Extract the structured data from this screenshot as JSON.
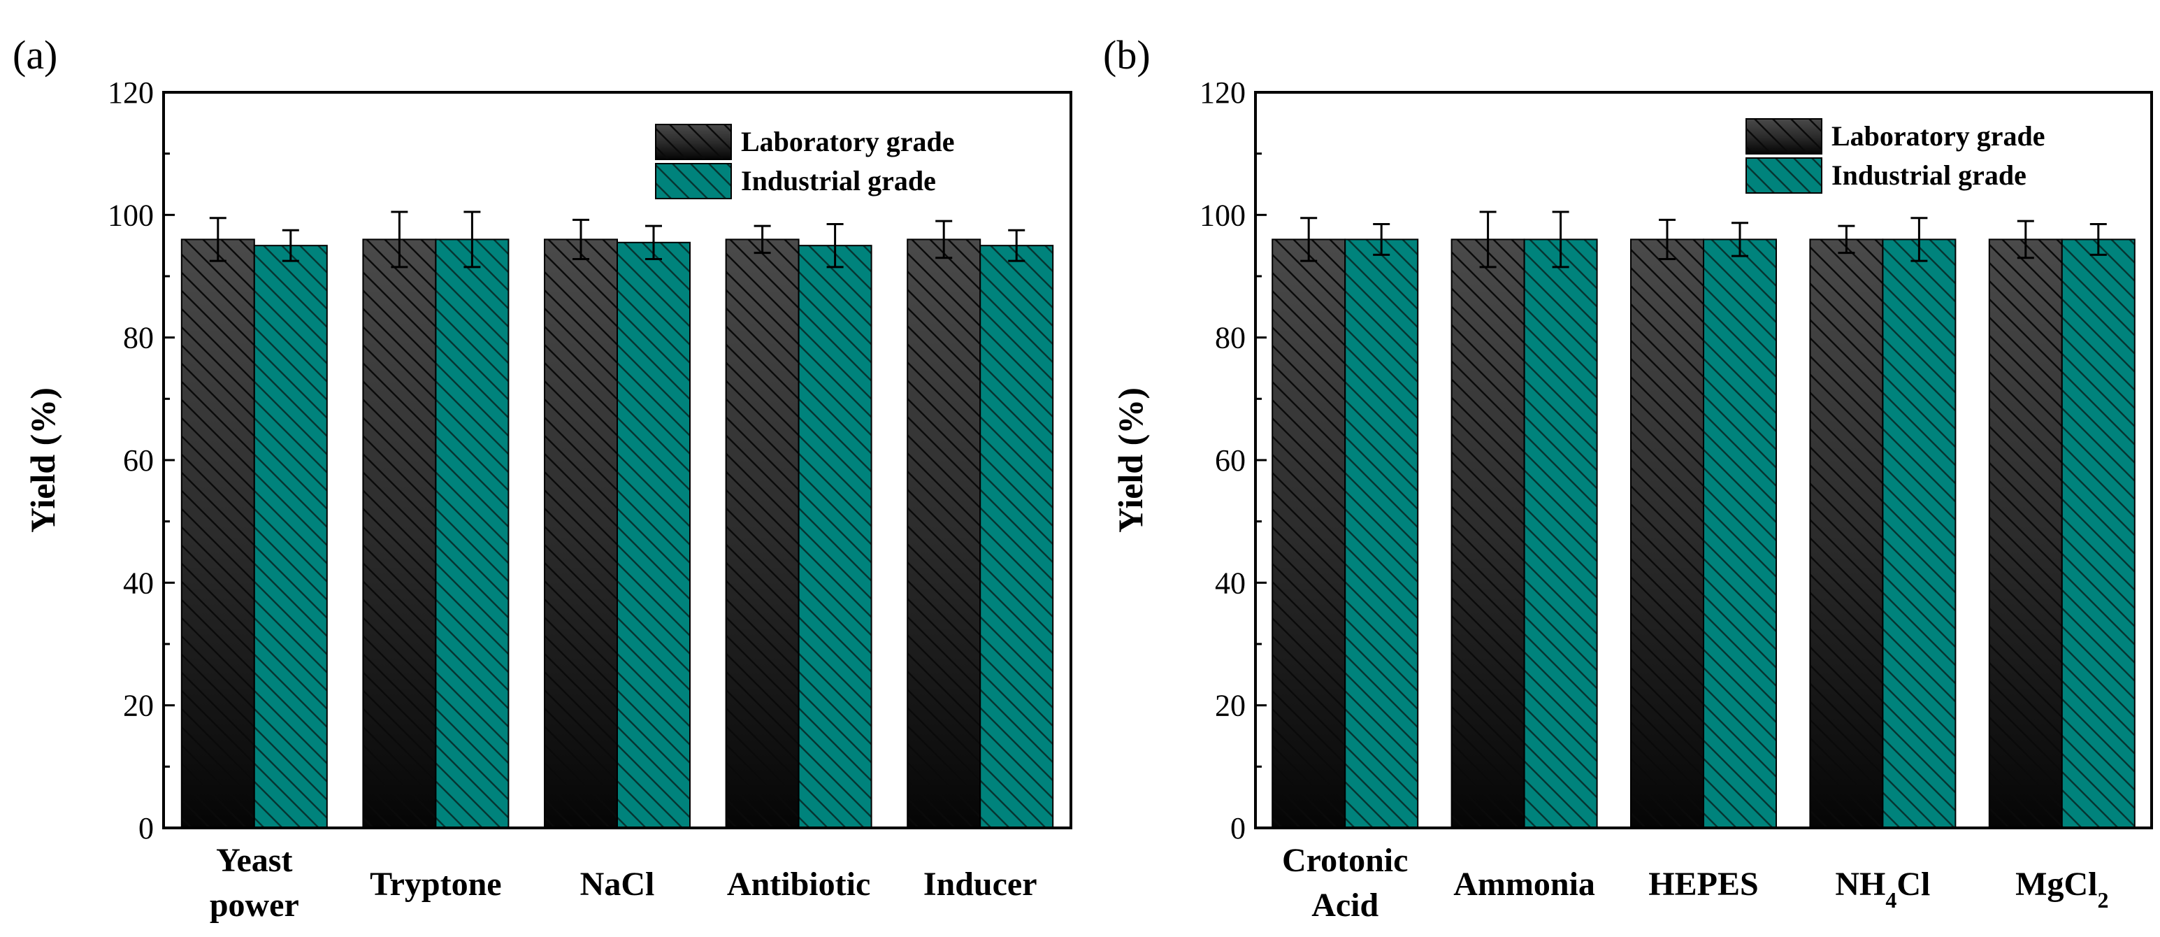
{
  "colors": {
    "lab": "#1a1a1a",
    "industrial": "#00837c",
    "hatch": "#0a0a0a",
    "axis": "#000000"
  },
  "chart_data": [
    {
      "panel": "(a)",
      "type": "bar",
      "ylabel": "Yield (%)",
      "ylim": [
        0,
        120
      ],
      "yticks": [
        "0",
        "20",
        "40",
        "60",
        "80",
        "100",
        "120"
      ],
      "categories": [
        [
          "Yeast",
          "power"
        ],
        [
          "Tryptone"
        ],
        [
          "NaCl"
        ],
        [
          "Antibiotic"
        ],
        [
          "Inducer"
        ]
      ],
      "legend_position": "top-right",
      "series": [
        {
          "name": "Laboratory grade",
          "values": [
            96,
            96,
            96,
            96,
            96
          ],
          "errors": [
            3.5,
            4.5,
            3.2,
            2.2,
            3.0
          ]
        },
        {
          "name": "Industrial grade",
          "values": [
            95,
            96,
            95.5,
            95,
            95
          ],
          "errors": [
            2.5,
            4.5,
            2.7,
            3.5,
            2.5
          ]
        }
      ]
    },
    {
      "panel": "(b)",
      "type": "bar",
      "ylabel": "Yield (%)",
      "ylim": [
        0,
        120
      ],
      "yticks": [
        "0",
        "20",
        "40",
        "60",
        "80",
        "100",
        "120"
      ],
      "categories": [
        [
          "Crotonic",
          "Acid"
        ],
        [
          "Ammonia"
        ],
        [
          "HEPES"
        ],
        [
          "NH4Cl"
        ],
        [
          "MgCl2"
        ]
      ],
      "legend_position": "top-right",
      "series": [
        {
          "name": "Laboratory grade",
          "values": [
            96,
            96,
            96,
            96,
            96
          ],
          "errors": [
            3.5,
            4.5,
            3.2,
            2.2,
            3.0
          ]
        },
        {
          "name": "Industrial grade",
          "values": [
            96,
            96,
            96,
            96,
            96
          ],
          "errors": [
            2.5,
            4.5,
            2.7,
            3.5,
            2.5
          ]
        }
      ]
    }
  ]
}
